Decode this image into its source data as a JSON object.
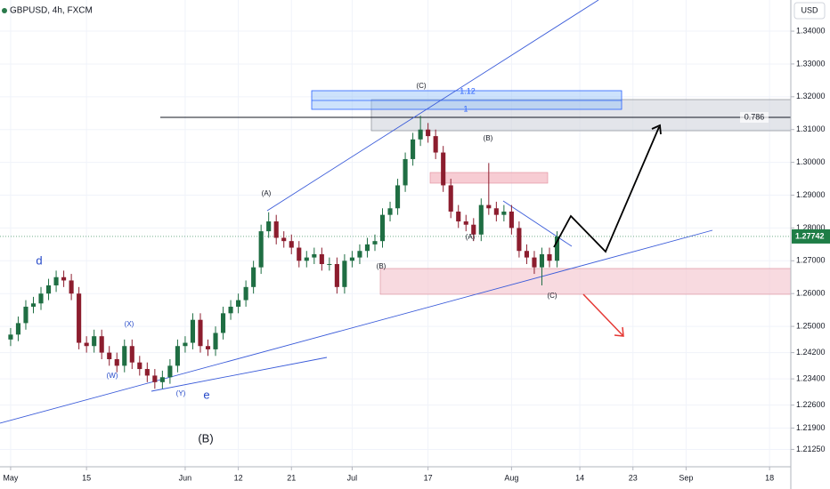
{
  "chart_data": {
    "type": "candlestick",
    "symbol": "GBPUSD, 4h, FXCM",
    "currency": "USD",
    "up_color": "#1f6e43",
    "down_color": "#8c1d2e",
    "open": [
      1.246,
      1.2475,
      1.251,
      1.256,
      1.257,
      1.26,
      1.2625,
      1.265,
      1.264,
      1.26,
      1.245,
      1.244,
      1.247,
      1.242,
      1.24,
      1.238,
      1.244,
      1.239,
      1.237,
      1.235,
      1.233,
      1.2345,
      1.238,
      1.244,
      1.245,
      1.252,
      1.244,
      1.243,
      1.248,
      1.254,
      1.256,
      1.258,
      1.262,
      1.268,
      1.279,
      1.282,
      1.277,
      1.276,
      1.274,
      1.27,
      1.271,
      1.272,
      1.269,
      1.269,
      1.262,
      1.27,
      1.271,
      1.273,
      1.275,
      1.276,
      1.284,
      1.286,
      1.293,
      1.301,
      1.307,
      1.31,
      1.308,
      1.303,
      1.293,
      1.285,
      1.282,
      1.281,
      1.278,
      1.287,
      1.286,
      1.284,
      1.285,
      1.28,
      1.273,
      1.271,
      1.268,
      1.272,
      1.27
    ],
    "high": [
      1.2495,
      1.253,
      1.258,
      1.259,
      1.262,
      1.2645,
      1.267,
      1.267,
      1.266,
      1.262,
      1.247,
      1.249,
      1.249,
      1.244,
      1.242,
      1.246,
      1.246,
      1.241,
      1.239,
      1.237,
      1.2365,
      1.24,
      1.246,
      1.247,
      1.254,
      1.254,
      1.246,
      1.25,
      1.256,
      1.258,
      1.26,
      1.264,
      1.27,
      1.281,
      1.2848,
      1.284,
      1.279,
      1.278,
      1.276,
      1.273,
      1.274,
      1.274,
      1.271,
      1.271,
      1.272,
      1.273,
      1.275,
      1.277,
      1.278,
      1.286,
      1.288,
      1.295,
      1.303,
      1.309,
      1.3142,
      1.312,
      1.31,
      1.305,
      1.295,
      1.287,
      1.284,
      1.283,
      1.289,
      1.2998,
      1.288,
      1.287,
      1.287,
      1.282,
      1.275,
      1.273,
      1.274,
      1.274,
      1.279
    ],
    "low": [
      1.244,
      1.2455,
      1.249,
      1.254,
      1.255,
      1.258,
      1.2605,
      1.262,
      1.258,
      1.243,
      1.242,
      1.242,
      1.24,
      1.238,
      1.236,
      1.236,
      1.237,
      1.235,
      1.233,
      1.231,
      1.231,
      1.2325,
      1.236,
      1.242,
      1.243,
      1.242,
      1.241,
      1.241,
      1.246,
      1.252,
      1.254,
      1.256,
      1.26,
      1.266,
      1.277,
      1.275,
      1.274,
      1.272,
      1.268,
      1.268,
      1.269,
      1.267,
      1.267,
      1.26,
      1.26,
      1.268,
      1.269,
      1.271,
      1.273,
      1.274,
      1.282,
      1.284,
      1.291,
      1.299,
      1.305,
      1.306,
      1.301,
      1.291,
      1.283,
      1.28,
      1.279,
      1.276,
      1.276,
      1.284,
      1.282,
      1.282,
      1.278,
      1.271,
      1.269,
      1.266,
      1.2625,
      1.268,
      1.268
    ],
    "close": [
      1.2475,
      1.251,
      1.256,
      1.257,
      1.26,
      1.2625,
      1.265,
      1.264,
      1.26,
      1.245,
      1.244,
      1.247,
      1.242,
      1.24,
      1.238,
      1.244,
      1.239,
      1.237,
      1.235,
      1.233,
      1.2345,
      1.238,
      1.244,
      1.245,
      1.252,
      1.244,
      1.243,
      1.248,
      1.254,
      1.256,
      1.258,
      1.262,
      1.268,
      1.279,
      1.282,
      1.277,
      1.276,
      1.274,
      1.27,
      1.271,
      1.272,
      1.269,
      1.269,
      1.262,
      1.27,
      1.271,
      1.273,
      1.275,
      1.276,
      1.284,
      1.286,
      1.293,
      1.301,
      1.307,
      1.31,
      1.308,
      1.303,
      1.293,
      1.285,
      1.282,
      1.281,
      1.278,
      1.287,
      1.286,
      1.284,
      1.285,
      1.28,
      1.273,
      1.271,
      1.268,
      1.272,
      1.27,
      1.2774
    ],
    "last_price": 1.27742,
    "last_price_color": "#1e7d46",
    "xlim": [
      -1.4,
      102.8
    ],
    "xticks": [
      {
        "value": 0,
        "label": "May"
      },
      {
        "value": 10,
        "label": "15"
      },
      {
        "value": 23,
        "label": "Jun"
      },
      {
        "value": 30,
        "label": "12"
      },
      {
        "value": 37,
        "label": "21"
      },
      {
        "value": 45,
        "label": "Jul"
      },
      {
        "value": 55,
        "label": "17"
      },
      {
        "value": 66,
        "label": "Aug"
      },
      {
        "value": 75,
        "label": "14"
      },
      {
        "value": 82,
        "label": "23"
      },
      {
        "value": 89,
        "label": "Sep"
      },
      {
        "value": 100,
        "label": "18"
      }
    ],
    "ylim": [
      1.2072,
      1.3495
    ],
    "yticks": [
      {
        "value": 1.34,
        "label": "1.34000"
      },
      {
        "value": 1.33,
        "label": "1.33000"
      },
      {
        "value": 1.32,
        "label": "1.32000"
      },
      {
        "value": 1.31,
        "label": "1.31000"
      },
      {
        "value": 1.3,
        "label": "1.30000"
      },
      {
        "value": 1.29,
        "label": "1.29000"
      },
      {
        "value": 1.28,
        "label": "1.28000"
      },
      {
        "value": 1.27,
        "label": "1.27000"
      },
      {
        "value": 1.26,
        "label": "1.26000"
      },
      {
        "value": 1.25,
        "label": "1.25000"
      },
      {
        "value": 1.242,
        "label": "1.24200"
      },
      {
        "value": 1.234,
        "label": "1.23400"
      },
      {
        "value": 1.226,
        "label": "1.22600"
      },
      {
        "value": 1.219,
        "label": "1.21900"
      },
      {
        "value": 1.2125,
        "label": "1.21250"
      }
    ],
    "annotations": [
      "(C)",
      "1.12",
      "1",
      "0.786",
      "(B)",
      "(A)",
      "(A)",
      "(B)",
      "(C)",
      "d",
      "(X)",
      "(W)",
      "(Y)",
      "e",
      "(B)"
    ]
  }
}
